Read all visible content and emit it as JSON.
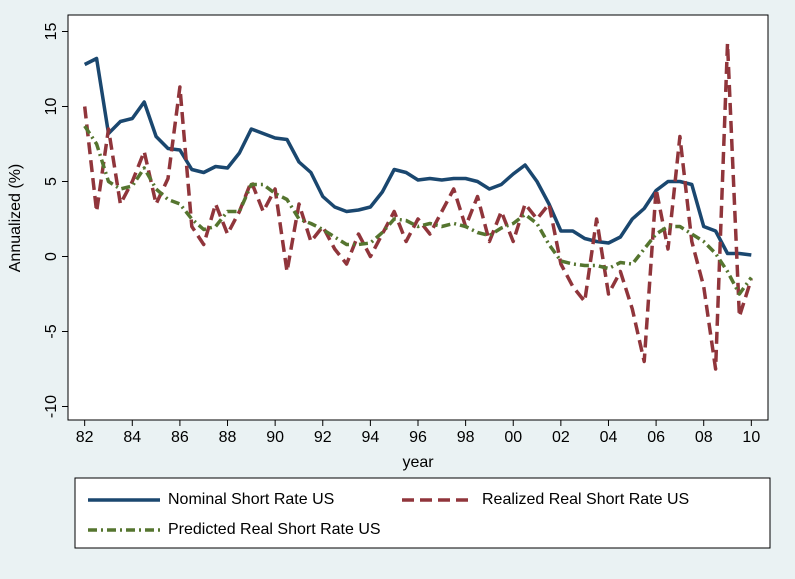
{
  "chart_data": {
    "type": "line",
    "y_label": "Annualized (%)",
    "x_label": "year",
    "x": [
      1982,
      1982.5,
      1983,
      1983.5,
      1984,
      1984.5,
      1985,
      1985.5,
      1986,
      1986.5,
      1987,
      1987.5,
      1988,
      1988.5,
      1989,
      1989.5,
      1990,
      1990.5,
      1991,
      1991.5,
      1992,
      1992.5,
      1993,
      1993.5,
      1994,
      1994.5,
      1995,
      1995.5,
      1996,
      1996.5,
      1997,
      1997.5,
      1998,
      1998.5,
      1999,
      1999.5,
      2000,
      2000.5,
      2001,
      2001.5,
      2002,
      2002.5,
      2003,
      2003.5,
      2004,
      2004.5,
      2005,
      2005.5,
      2006,
      2006.5,
      2007,
      2007.5,
      2008,
      2008.5,
      2009,
      2009.5,
      2010
    ],
    "series": [
      {
        "name": "Nominal Short Rate US",
        "color": "#1a476f",
        "dash": "none",
        "values": [
          12.8,
          13.2,
          8.2,
          9.0,
          9.2,
          10.3,
          8.0,
          7.2,
          7.1,
          5.8,
          5.6,
          6.0,
          5.9,
          6.9,
          8.5,
          8.2,
          7.9,
          7.8,
          6.3,
          5.6,
          4.0,
          3.3,
          3.0,
          3.1,
          3.3,
          4.3,
          5.8,
          5.6,
          5.1,
          5.2,
          5.1,
          5.2,
          5.2,
          5.0,
          4.5,
          4.8,
          5.5,
          6.1,
          5.0,
          3.5,
          1.7,
          1.7,
          1.2,
          1.0,
          0.9,
          1.3,
          2.5,
          3.2,
          4.4,
          5.0,
          5.0,
          4.8,
          2.0,
          1.7,
          0.2,
          0.2,
          0.1
        ]
      },
      {
        "name": "Realized Real Short Rate US",
        "color": "#90353b",
        "dash": "12 6",
        "values": [
          10.0,
          3.0,
          8.5,
          3.5,
          5.0,
          7.0,
          3.5,
          5.2,
          11.3,
          2.0,
          0.8,
          3.5,
          1.5,
          3.0,
          5.0,
          3.0,
          4.5,
          -1.0,
          3.5,
          1.0,
          2.0,
          0.5,
          -0.5,
          1.5,
          0.0,
          1.5,
          3.0,
          1.0,
          2.5,
          1.5,
          3.0,
          4.5,
          2.0,
          4.0,
          1.0,
          3.0,
          1.0,
          3.5,
          2.5,
          3.5,
          -0.5,
          -2.0,
          -3.0,
          2.5,
          -2.5,
          -1.0,
          -3.5,
          -7.0,
          4.5,
          0.5,
          8.0,
          1.0,
          -2.0,
          -7.5,
          14.2,
          -4.0,
          -1.5
        ]
      },
      {
        "name": "Predicted Real Short Rate US",
        "color": "#55752f",
        "dash": "9 4 2 4",
        "values": [
          8.7,
          7.5,
          5.0,
          4.5,
          4.7,
          5.9,
          4.5,
          3.8,
          3.5,
          2.5,
          1.8,
          2.0,
          3.0,
          3.0,
          4.8,
          4.8,
          4.2,
          3.8,
          2.5,
          2.2,
          1.8,
          1.3,
          0.8,
          0.8,
          0.9,
          1.6,
          2.5,
          2.4,
          2.0,
          2.2,
          2.0,
          2.2,
          2.0,
          1.6,
          1.4,
          1.9,
          2.2,
          2.8,
          2.2,
          0.8,
          -0.3,
          -0.5,
          -0.6,
          -0.6,
          -0.8,
          -0.4,
          -0.5,
          0.5,
          1.5,
          2.0,
          2.0,
          1.5,
          1.0,
          0.2,
          -1.0,
          -2.5,
          -1.4
        ]
      }
    ],
    "xlim": [
      1981.3,
      2010.7
    ],
    "ylim": [
      -10.9,
      16.1
    ],
    "xticks": [
      {
        "value": 1982,
        "label": "82"
      },
      {
        "value": 1984,
        "label": "84"
      },
      {
        "value": 1986,
        "label": "86"
      },
      {
        "value": 1988,
        "label": "88"
      },
      {
        "value": 1990,
        "label": "90"
      },
      {
        "value": 1992,
        "label": "92"
      },
      {
        "value": 1994,
        "label": "94"
      },
      {
        "value": 1996,
        "label": "96"
      },
      {
        "value": 1998,
        "label": "98"
      },
      {
        "value": 2000,
        "label": "00"
      },
      {
        "value": 2002,
        "label": "02"
      },
      {
        "value": 2004,
        "label": "04"
      },
      {
        "value": 2006,
        "label": "06"
      },
      {
        "value": 2008,
        "label": "08"
      },
      {
        "value": 2010,
        "label": "10"
      }
    ],
    "yticks": [
      -10,
      -5,
      0,
      5,
      10,
      15
    ],
    "grid": false
  }
}
